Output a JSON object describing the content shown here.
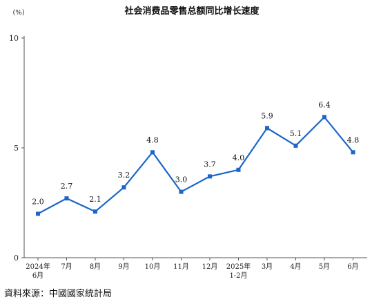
{
  "chart_data": {
    "type": "line",
    "title": "社会消费品零售总额同比增长速度",
    "ylabel": "(%)",
    "ylim": [
      0,
      10
    ],
    "yticks": [
      0,
      5,
      10
    ],
    "grid": false,
    "categories": [
      [
        "2024年",
        "6月"
      ],
      [
        "7月"
      ],
      [
        "8月"
      ],
      [
        "9月"
      ],
      [
        "10月"
      ],
      [
        "11月"
      ],
      [
        "12月"
      ],
      [
        "2025年",
        "1-2月"
      ],
      [
        "3月"
      ],
      [
        "4月"
      ],
      [
        "5月"
      ],
      [
        "6月"
      ]
    ],
    "series": [
      {
        "values": [
          2.0,
          2.7,
          2.1,
          3.2,
          4.8,
          3.0,
          3.7,
          4.0,
          5.9,
          5.1,
          6.4,
          4.8
        ],
        "labels": [
          "2.0",
          "2.7",
          "2.1",
          "3.2",
          "4.8",
          "3.0",
          "3.7",
          "4.0",
          "5.9",
          "5.1",
          "6.4",
          "4.8"
        ],
        "color": "#1a66c9"
      }
    ]
  },
  "source": "資料來源：中國國家統計局"
}
